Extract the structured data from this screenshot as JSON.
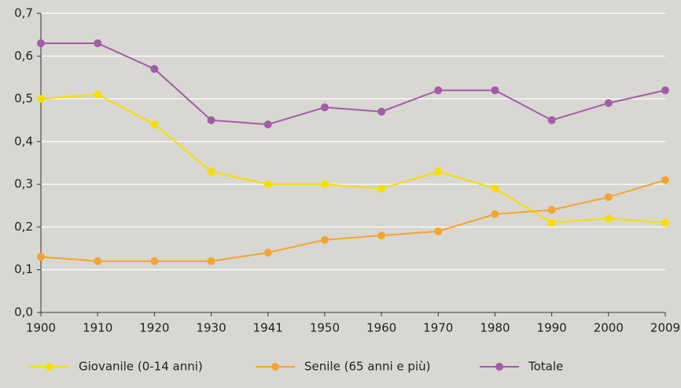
{
  "chart_data": {
    "type": "line",
    "categories": [
      "1900",
      "1910",
      "1920",
      "1930",
      "1941",
      "1950",
      "1960",
      "1970",
      "1980",
      "1990",
      "2000",
      "2009"
    ],
    "series": [
      {
        "name": "Giovanile (0-14 anni)",
        "color": "#f4de00",
        "values": [
          0.5,
          0.51,
          0.44,
          0.33,
          0.3,
          0.3,
          0.29,
          0.33,
          0.29,
          0.21,
          0.22,
          0.21
        ]
      },
      {
        "name": "Senile (65 anni e più)",
        "color": "#f2a630",
        "values": [
          0.13,
          0.12,
          0.12,
          0.12,
          0.14,
          0.17,
          0.18,
          0.19,
          0.23,
          0.24,
          0.27,
          0.31
        ]
      },
      {
        "name": "Totale",
        "color": "#a35ca6",
        "values": [
          0.63,
          0.63,
          0.57,
          0.45,
          0.44,
          0.48,
          0.47,
          0.52,
          0.52,
          0.45,
          0.49,
          0.52
        ]
      }
    ],
    "ylim": [
      0,
      0.7
    ],
    "yticks": [
      {
        "value": 0,
        "label": "0,0"
      },
      {
        "value": 0.1,
        "label": "0,1"
      },
      {
        "value": 0.2,
        "label": "0,2"
      },
      {
        "value": 0.3,
        "label": "0,3"
      },
      {
        "value": 0.4,
        "label": "0,4"
      },
      {
        "value": 0.5,
        "label": "0,5"
      },
      {
        "value": 0.6,
        "label": "0,6"
      },
      {
        "value": 0.7,
        "label": "0,7"
      }
    ],
    "grid": true
  }
}
